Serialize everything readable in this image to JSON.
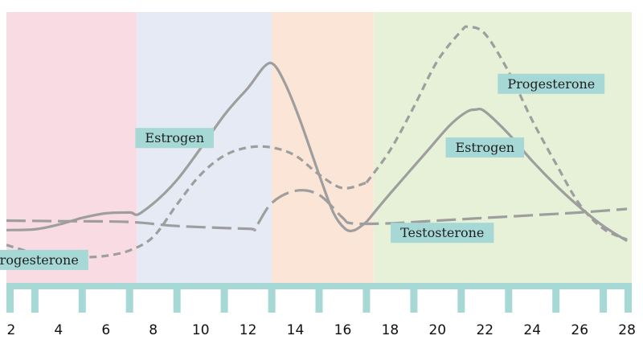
{
  "chart_data": {
    "type": "line",
    "title": "",
    "xlabel": "",
    "ylabel": "",
    "xlim": [
      1.8,
      28.2
    ],
    "ylim": [
      0,
      100
    ],
    "x_ticks": [
      "2",
      "4",
      "6",
      "8",
      "10",
      "12",
      "14",
      "16",
      "18",
      "20",
      "22",
      "24",
      "26",
      "28"
    ],
    "tick_values": [
      2,
      4,
      6,
      8,
      10,
      12,
      14,
      16,
      18,
      20,
      22,
      24,
      26,
      28
    ],
    "phases": [
      {
        "name": "phase-1",
        "start": 1.8,
        "end": 7.3,
        "color": "#f9dbe3"
      },
      {
        "name": "phase-2",
        "start": 7.3,
        "end": 13.0,
        "color": "#e6eaf5"
      },
      {
        "name": "phase-3",
        "start": 13.0,
        "end": 17.3,
        "color": "#fae5d6"
      },
      {
        "name": "phase-4",
        "start": 17.3,
        "end": 28.2,
        "color": "#e6f1d8"
      }
    ],
    "series": [
      {
        "name": "Estrogen (cycle 1)",
        "style": "solid",
        "color": "#9e9e9e",
        "points": [
          [
            1.8,
            19.5
          ],
          [
            3,
            19.8
          ],
          [
            4,
            21.5
          ],
          [
            5,
            24
          ],
          [
            6,
            25.7
          ],
          [
            7,
            26
          ],
          [
            7.5,
            26
          ],
          [
            9,
            38
          ],
          [
            11,
            62
          ],
          [
            12,
            72
          ],
          [
            12.7,
            80
          ],
          [
            13.1,
            80.5
          ],
          [
            13.6,
            73
          ],
          [
            14.2,
            60
          ],
          [
            15,
            40
          ],
          [
            15.6,
            26
          ],
          [
            16.1,
            20
          ],
          [
            16.5,
            19.5
          ],
          [
            17,
            22.5
          ]
        ]
      },
      {
        "name": "Estrogen (cycle 2)",
        "style": "solid",
        "color": "#9e9e9e",
        "points": [
          [
            17,
            22.5
          ],
          [
            18,
            33
          ],
          [
            19.5,
            48
          ],
          [
            20.5,
            58
          ],
          [
            21.2,
            63
          ],
          [
            21.6,
            64
          ],
          [
            22,
            63.3
          ],
          [
            23,
            55
          ],
          [
            24,
            45
          ],
          [
            25,
            36
          ],
          [
            26,
            28
          ],
          [
            27,
            21
          ],
          [
            28,
            15.5
          ]
        ]
      },
      {
        "name": "Progesterone (cycle 1)",
        "style": "dashed-short",
        "color": "#9e9e9e",
        "points": [
          [
            1.8,
            14
          ],
          [
            3,
            11
          ],
          [
            4,
            10
          ],
          [
            5,
            9.5
          ],
          [
            6,
            10
          ],
          [
            7,
            12
          ],
          [
            8,
            17
          ],
          [
            9,
            29
          ],
          [
            10,
            40
          ],
          [
            11,
            47
          ],
          [
            12,
            50
          ],
          [
            13,
            50
          ],
          [
            14,
            47
          ],
          [
            15,
            40
          ],
          [
            16,
            35
          ],
          [
            17,
            37
          ]
        ]
      },
      {
        "name": "Progesterone (cycle 2)",
        "style": "dashed-short",
        "color": "#9e9e9e",
        "points": [
          [
            17,
            37
          ],
          [
            18,
            49
          ],
          [
            19,
            65
          ],
          [
            20,
            82
          ],
          [
            21,
            93
          ],
          [
            21.3,
            94.5
          ],
          [
            22,
            92
          ],
          [
            23,
            78
          ],
          [
            24,
            60
          ],
          [
            25,
            44
          ],
          [
            26,
            29
          ],
          [
            27,
            20
          ],
          [
            28,
            16
          ]
        ]
      },
      {
        "name": "Testosterone",
        "style": "dashed-long",
        "color": "#9e9e9e",
        "points": [
          [
            1.8,
            23
          ],
          [
            4,
            22.8
          ],
          [
            7,
            22.5
          ],
          [
            9,
            21
          ],
          [
            12,
            20
          ],
          [
            12.3,
            20.3
          ],
          [
            13,
            29.5
          ],
          [
            14,
            34
          ],
          [
            15,
            32.5
          ],
          [
            16,
            24
          ],
          [
            16.4,
            22
          ],
          [
            18,
            22
          ],
          [
            20,
            23
          ],
          [
            22,
            24
          ],
          [
            24,
            25
          ],
          [
            26,
            26
          ],
          [
            28,
            27.3
          ]
        ]
      }
    ],
    "annotations": [
      {
        "text": "Estrogen",
        "x": 8.9,
        "y": 53.5
      },
      {
        "text": "Progesterone",
        "x": 3.0,
        "y": 8.5
      },
      {
        "text": "Estrogen",
        "x": 22.0,
        "y": 50
      },
      {
        "text": "Progesterone",
        "x": 24.8,
        "y": 73.5
      },
      {
        "text": "Testosterone",
        "x": 20.2,
        "y": 18.5
      }
    ],
    "colors": {
      "line": "#9e9e9e",
      "axis": "#a6d8d6",
      "label_bg": "#a6d8d6"
    }
  }
}
